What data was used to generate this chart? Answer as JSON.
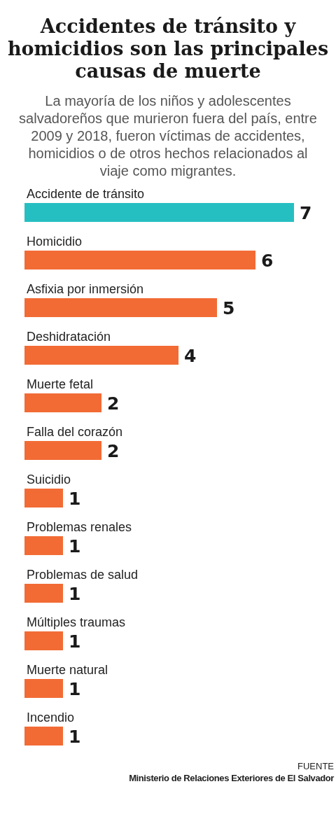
{
  "chart_data": {
    "type": "bar",
    "orientation": "horizontal",
    "title": "Accidentes de tránsito y homicidios son las principales causas de muerte",
    "subtitle": "La mayoría de los niños y adolescentes salvadoreños que murieron fuera del país, entre 2009 y 2018, fueron víctimas de accidentes, homicidios o de otros hechos relacionados al viaje como migrantes.",
    "categories": [
      "Accidente de tránsito",
      "Homicidio",
      "Asfixia por inmersión",
      "Deshidratación",
      "Muerte fetal",
      "Falla del corazón",
      "Suicidio",
      "Problemas renales",
      "Problemas de salud",
      "Múltiples traumas",
      "Muerte natural",
      "Incendio"
    ],
    "values": [
      7,
      6,
      5,
      4,
      2,
      2,
      1,
      1,
      1,
      1,
      1,
      1
    ],
    "colors": [
      "#26bfc1",
      "#f26b35",
      "#f26b35",
      "#f26b35",
      "#f26b35",
      "#f26b35",
      "#f26b35",
      "#f26b35",
      "#f26b35",
      "#f26b35",
      "#f26b35",
      "#f26b35"
    ],
    "data_labels": true,
    "annotations": [
      "FUENTE",
      "Ministerio de Relaciones Exteriores de El Salvador"
    ]
  }
}
